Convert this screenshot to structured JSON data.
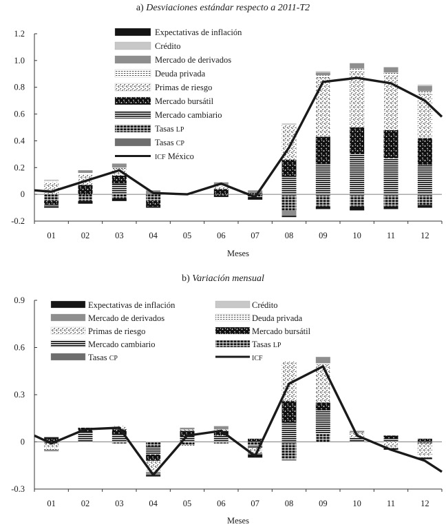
{
  "chart_data": [
    {
      "type": "bar",
      "stacked": true,
      "title_prefix": "a) ",
      "title": "Desviaciones estándar respecto a 2011-T2",
      "xlabel": "Meses",
      "ylabel": "",
      "ylim": [
        -0.2,
        1.2
      ],
      "yticks": [
        "-0.2",
        "0",
        "0.2",
        "0.4",
        "0.6",
        "0.8",
        "1.0",
        "1.2"
      ],
      "categories": [
        "01",
        "02",
        "03",
        "04",
        "05",
        "06",
        "07",
        "08",
        "09",
        "10",
        "11",
        "12"
      ],
      "series": [
        {
          "name": "Tasas CP",
          "key": "tcp",
          "values": [
            0.0,
            0.0,
            0.0,
            0.0,
            0.0,
            0.0,
            0.0,
            -0.01,
            -0.01,
            -0.01,
            -0.01,
            -0.01
          ]
        },
        {
          "name": "Tasas LP",
          "key": "tlp",
          "values": [
            -0.05,
            -0.05,
            -0.03,
            -0.05,
            0.0,
            -0.01,
            -0.02,
            -0.11,
            -0.08,
            -0.08,
            -0.08,
            -0.07
          ]
        },
        {
          "name": "Mercado cambiario",
          "key": "mc",
          "values": [
            0.0,
            0.0,
            0.08,
            0.0,
            0.0,
            0.0,
            0.0,
            0.13,
            0.23,
            0.3,
            0.27,
            0.22
          ]
        },
        {
          "name": "Mercado bursátil",
          "key": "mb",
          "values": [
            -0.03,
            0.07,
            0.06,
            -0.04,
            0.0,
            0.04,
            0.01,
            0.13,
            0.2,
            0.2,
            0.21,
            0.2
          ]
        },
        {
          "name": "Primas de riesgo",
          "key": "pr",
          "values": [
            0.09,
            0.08,
            0.05,
            0.0,
            0.0,
            0.02,
            0.0,
            0.26,
            0.44,
            0.42,
            0.41,
            0.33
          ]
        },
        {
          "name": "Deuda privada",
          "key": "dp",
          "values": [
            0.01,
            0.01,
            0.01,
            0.0,
            0.0,
            0.01,
            0.0,
            0.0,
            0.02,
            0.02,
            0.02,
            0.02
          ]
        },
        {
          "name": "Mercado de derivados",
          "key": "md",
          "values": [
            -0.01,
            0.02,
            0.03,
            0.03,
            0.0,
            0.02,
            0.02,
            -0.04,
            0.02,
            0.04,
            0.04,
            0.04
          ]
        },
        {
          "name": "Crédito",
          "key": "cr",
          "values": [
            0.01,
            0.0,
            0.0,
            0.0,
            0.0,
            0.0,
            0.0,
            0.01,
            0.01,
            0.0,
            0.0,
            0.01
          ]
        },
        {
          "name": "Expectativas de inflación",
          "key": "ei",
          "values": [
            -0.01,
            -0.02,
            -0.02,
            -0.01,
            0.0,
            -0.01,
            -0.02,
            -0.01,
            -0.02,
            -0.03,
            -0.02,
            -0.02
          ]
        }
      ],
      "line": {
        "name": "ICF México",
        "x": [
          0.5,
          1,
          2,
          3,
          4,
          5,
          6,
          7,
          8,
          9,
          10,
          11,
          12,
          12.5
        ],
        "values": [
          0.03,
          0.02,
          0.1,
          0.18,
          0.01,
          0.0,
          0.08,
          -0.02,
          0.35,
          0.84,
          0.87,
          0.83,
          0.7,
          0.58
        ]
      },
      "legend": {
        "placement": "top-center",
        "entries": [
          {
            "text": "Expectativas de inflación",
            "key": "ei"
          },
          {
            "text": "Crédito",
            "key": "cr"
          },
          {
            "text": "Mercado de derivados",
            "key": "md"
          },
          {
            "text": "Deuda privada",
            "key": "dp"
          },
          {
            "text": "Primas de riesgo",
            "key": "pr"
          },
          {
            "text": "Mercado bursátil",
            "key": "mb"
          },
          {
            "text": "Mercado cambiario",
            "key": "mc"
          },
          {
            "text": "Tasas ",
            "sc": "LP",
            "key": "tlp"
          },
          {
            "text": "Tasas ",
            "sc": "CP",
            "key": "tcp"
          },
          {
            "text": "",
            "sc": "ICF",
            "tail": " México",
            "key": "line"
          }
        ]
      }
    },
    {
      "type": "bar",
      "stacked": true,
      "title_prefix": "b) ",
      "title": "Variación mensual",
      "xlabel": "Meses",
      "ylabel": "",
      "ylim": [
        -0.3,
        0.9
      ],
      "yticks": [
        "-0.3",
        "0",
        "0.3",
        "0.6",
        "0.9"
      ],
      "categories": [
        "01",
        "02",
        "03",
        "04",
        "05",
        "06",
        "07",
        "08",
        "09",
        "10",
        "11",
        "12"
      ],
      "series": [
        {
          "name": "Tasas CP",
          "key": "tcp",
          "values": [
            0.0,
            0.0,
            0.0,
            0.0,
            0.0,
            0.0,
            0.0,
            -0.01,
            0.0,
            0.0,
            0.0,
            0.0
          ]
        },
        {
          "name": "Tasas LP",
          "key": "tlp",
          "values": [
            -0.01,
            0.0,
            -0.01,
            -0.03,
            -0.02,
            -0.01,
            -0.02,
            -0.1,
            0.05,
            0.0,
            0.0,
            -0.01
          ]
        },
        {
          "name": "Mercado cambiario",
          "key": "mc",
          "values": [
            0.0,
            0.06,
            0.05,
            -0.05,
            0.03,
            0.04,
            -0.02,
            0.12,
            0.15,
            0.03,
            0.02,
            0.0
          ]
        },
        {
          "name": "Mercado bursátil",
          "key": "mb",
          "values": [
            0.02,
            0.03,
            0.03,
            -0.04,
            0.04,
            0.03,
            0.02,
            0.14,
            0.05,
            0.0,
            0.02,
            0.02
          ]
        },
        {
          "name": "Primas de riesgo",
          "key": "pr",
          "values": [
            -0.03,
            0.0,
            0.02,
            -0.06,
            0.01,
            0.01,
            -0.03,
            0.25,
            0.24,
            0.03,
            -0.04,
            -0.08
          ]
        },
        {
          "name": "Deuda privada",
          "key": "dp",
          "values": [
            -0.01,
            0.0,
            0.0,
            -0.01,
            -0.01,
            0.0,
            0.0,
            0.0,
            0.01,
            0.0,
            0.0,
            -0.01
          ]
        },
        {
          "name": "Mercado de derivados",
          "key": "md",
          "values": [
            -0.01,
            0.0,
            0.0,
            -0.02,
            0.01,
            0.02,
            -0.01,
            -0.01,
            0.04,
            0.01,
            0.0,
            0.0
          ]
        },
        {
          "name": "Crédito",
          "key": "cr",
          "values": [
            0.0,
            0.0,
            0.0,
            0.0,
            0.0,
            0.0,
            0.0,
            0.0,
            0.0,
            0.0,
            0.0,
            0.0
          ]
        },
        {
          "name": "Expectativas de inflación",
          "key": "ei",
          "values": [
            0.01,
            0.0,
            0.0,
            -0.01,
            0.0,
            0.0,
            -0.02,
            0.0,
            0.0,
            0.0,
            -0.01,
            -0.01
          ]
        }
      ],
      "line": {
        "name": "ICF",
        "x": [
          0.5,
          1,
          2,
          3,
          4,
          5,
          6,
          7,
          8,
          9,
          10,
          11,
          12,
          12.5
        ],
        "values": [
          0.04,
          -0.01,
          0.08,
          0.09,
          -0.21,
          0.04,
          0.07,
          -0.09,
          0.37,
          0.48,
          0.04,
          -0.05,
          -0.12,
          -0.19
        ]
      },
      "legend": {
        "placement": "top-left",
        "entries": [
          {
            "text": "Expectativas de inflación",
            "key": "ei"
          },
          {
            "text": "Crédito",
            "key": "cr"
          },
          {
            "text": "Mercado de derivados",
            "key": "md"
          },
          {
            "text": "Deuda privada",
            "key": "dp"
          },
          {
            "text": "Primas de riesgo",
            "key": "pr"
          },
          {
            "text": "Mercado bursátil",
            "key": "mb"
          },
          {
            "text": "Mercado cambiario",
            "key": "mc"
          },
          {
            "text": "Tasas ",
            "sc": "LP",
            "key": "tlp"
          },
          {
            "text": "Tasas ",
            "sc": "CP",
            "key": "tcp"
          },
          {
            "text": "",
            "sc": "ICF",
            "key": "line"
          }
        ]
      }
    }
  ]
}
